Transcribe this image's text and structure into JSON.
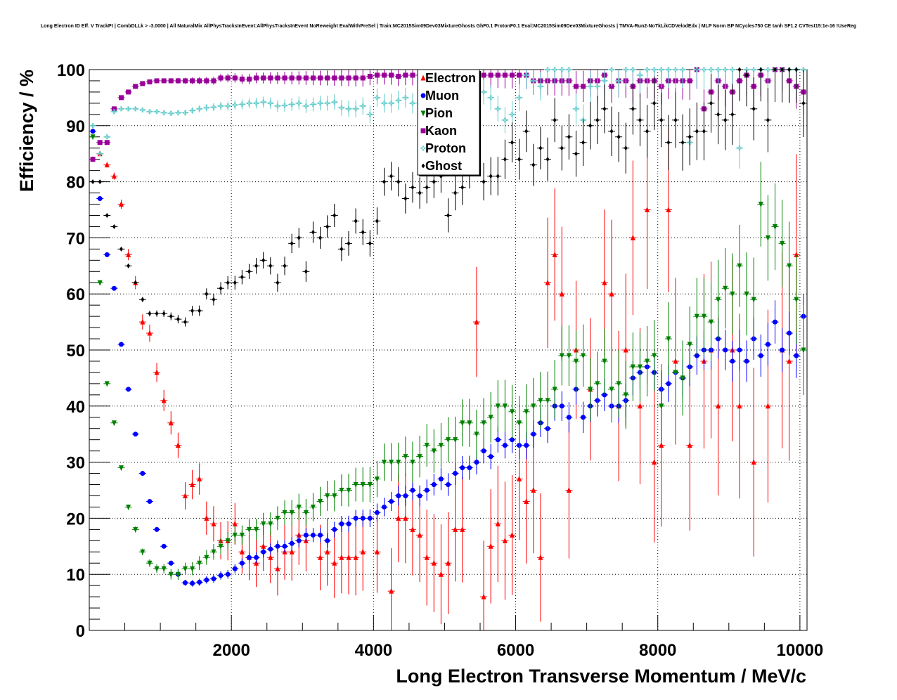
{
  "title": "Long Electron ID Eff. V TrackPt | CombDLLk > -3.0000 | All NaturalMix AllPhysTracksInEvent:AllPhysTracksInEvent NoReweight EvalWithPreSel | Train:MC2015Sim09Dev03MixtureGhosts GhF0.1 ProtonF0.1 Eval:MC2015Sim09Dev03MixtureGhosts | TMVA-Run2-NoTkLikCDVelodEdx | MLP Norm BP NCycles750 CE tanh SF1.2 CVTest15:1e-16 !UseReg",
  "chart_data": {
    "type": "scatter",
    "title": "Long Electron ID Eff. V TrackPt | CombDLLk > -3.0000 | All NaturalMix AllPhysTracksInEvent:AllPhysTracksInEvent NoReweight EvalWithPreSel | Train:MC2015Sim09Dev03MixtureGhosts GhF0.1 ProtonF0.1 Eval:MC2015Sim09Dev03MixtureGhosts | TMVA-Run2-NoTkLikCDVelodEdx | MLP Norm BP NCycles750 CE tanh SF1.2 CVTest15:1e-16 !UseReg",
    "xlabel": "Long Electron Transverse Momentum / MeV/c",
    "ylabel": "Efficiency / %",
    "xlim": [
      0,
      10100
    ],
    "ylim": [
      0,
      100
    ],
    "xticks": [
      2000,
      4000,
      6000,
      8000,
      10000
    ],
    "yticks": [
      0,
      10,
      20,
      30,
      40,
      50,
      60,
      70,
      80,
      90,
      100
    ],
    "grid": true,
    "legend_position": "top-center",
    "series": [
      {
        "name": "Electron",
        "color": "#ff0000",
        "marker": "triangle-up",
        "x": [
          50,
          150,
          250,
          350,
          450,
          550,
          650,
          750,
          850,
          950,
          1050,
          1150,
          1250,
          1350,
          1450,
          1550,
          1650,
          1750,
          1850,
          1950,
          2050,
          2150,
          2250,
          2350,
          2450,
          2550,
          2650,
          2750,
          2850,
          2950,
          3050,
          3250,
          3350,
          3450,
          3550,
          3650,
          3750,
          3850,
          4050,
          4250,
          4350,
          4450,
          4550,
          4650,
          4750,
          4850,
          4950,
          5050,
          5150,
          5250,
          5450,
          5550,
          5650,
          5750,
          5850,
          5950,
          6050,
          6150,
          6250,
          6350,
          6450,
          6550,
          6650,
          6750,
          6850,
          7050,
          7250,
          7350,
          7450,
          7550,
          7650,
          7750,
          7850,
          7950,
          8050,
          8150,
          8250,
          8450,
          8650,
          8750,
          8850,
          9050,
          9150,
          9350,
          9550,
          9750,
          9850,
          9950
        ],
        "y": [
          84,
          85,
          83,
          81,
          76,
          67,
          62,
          55,
          53,
          46,
          41,
          37,
          33,
          24,
          26,
          27,
          20,
          19,
          16,
          16,
          19,
          14,
          13,
          12,
          15,
          13,
          11,
          14,
          14,
          17,
          16,
          13,
          14,
          12,
          13,
          13,
          13,
          14,
          14,
          7,
          20,
          20,
          18,
          17,
          13,
          12,
          10,
          12,
          18,
          18,
          55,
          6,
          15,
          19,
          16,
          17,
          27,
          23,
          25,
          13,
          62,
          67,
          60,
          25,
          50,
          43,
          62,
          60,
          40,
          50,
          70,
          40,
          75,
          30,
          33,
          75,
          48,
          33,
          48,
          50,
          40,
          50,
          40,
          30,
          40,
          50,
          48,
          67
        ]
      },
      {
        "name": "Muon",
        "color": "#0000ff",
        "marker": "circle",
        "x": [
          50,
          150,
          250,
          350,
          450,
          550,
          650,
          750,
          850,
          950,
          1050,
          1150,
          1250,
          1350,
          1450,
          1550,
          1650,
          1750,
          1850,
          1950,
          2050,
          2150,
          2250,
          2350,
          2450,
          2550,
          2650,
          2750,
          2850,
          2950,
          3050,
          3150,
          3250,
          3350,
          3450,
          3550,
          3650,
          3750,
          3850,
          3950,
          4050,
          4150,
          4250,
          4350,
          4450,
          4550,
          4650,
          4750,
          4850,
          4950,
          5050,
          5150,
          5250,
          5350,
          5450,
          5550,
          5650,
          5750,
          5850,
          5950,
          6050,
          6150,
          6250,
          6350,
          6450,
          6550,
          6650,
          6750,
          6850,
          6950,
          7050,
          7150,
          7250,
          7350,
          7450,
          7550,
          7650,
          7750,
          7850,
          7950,
          8050,
          8150,
          8250,
          8350,
          8450,
          8550,
          8650,
          8750,
          8850,
          8950,
          9050,
          9150,
          9250,
          9350,
          9450,
          9550,
          9650,
          9750,
          9850,
          9950,
          10050
        ],
        "y": [
          89,
          77,
          67,
          61,
          51,
          43,
          35,
          28,
          23,
          18,
          15,
          12,
          10,
          8.5,
          8.4,
          8.6,
          9,
          9.2,
          9.8,
          10,
          11,
          12,
          13,
          13,
          14,
          14.5,
          15,
          15,
          15.5,
          16,
          17,
          17,
          17,
          16,
          18,
          19,
          19,
          20,
          20,
          20,
          21,
          22,
          23,
          24,
          24,
          25,
          24,
          25,
          26,
          27,
          26,
          28,
          29,
          29,
          30,
          32,
          31,
          34,
          33,
          34,
          33,
          33,
          35,
          37,
          36,
          40,
          40,
          38,
          43,
          38,
          40,
          41,
          42,
          40,
          40,
          41,
          45,
          46,
          47,
          46,
          43,
          44,
          46,
          45,
          47,
          49,
          50,
          50,
          52,
          50,
          48,
          50,
          48,
          52,
          49,
          51,
          55,
          50,
          53,
          49,
          56
        ]
      },
      {
        "name": "Pion",
        "color": "#008000",
        "marker": "triangle-down",
        "x": [
          50,
          150,
          250,
          350,
          450,
          550,
          650,
          750,
          850,
          950,
          1050,
          1150,
          1250,
          1350,
          1450,
          1550,
          1650,
          1750,
          1850,
          1950,
          2050,
          2150,
          2250,
          2350,
          2450,
          2550,
          2650,
          2750,
          2850,
          2950,
          3050,
          3150,
          3250,
          3350,
          3450,
          3550,
          3650,
          3750,
          3850,
          3950,
          4050,
          4150,
          4250,
          4350,
          4450,
          4550,
          4650,
          4750,
          4850,
          4950,
          5050,
          5150,
          5250,
          5350,
          5450,
          5550,
          5650,
          5750,
          5850,
          5950,
          6050,
          6150,
          6250,
          6350,
          6450,
          6550,
          6650,
          6750,
          6850,
          6950,
          7050,
          7150,
          7250,
          7350,
          7450,
          7550,
          7650,
          7750,
          7850,
          7950,
          8050,
          8150,
          8250,
          8350,
          8450,
          8550,
          8650,
          8750,
          8850,
          8950,
          9050,
          9150,
          9250,
          9350,
          9450,
          9550,
          9650,
          9750,
          9850,
          9950,
          10050
        ],
        "y": [
          88,
          62,
          44,
          37,
          29,
          22,
          18,
          14,
          12,
          11,
          11,
          10,
          10,
          11,
          11,
          12,
          13,
          14,
          15,
          16,
          17,
          17,
          18,
          18,
          19,
          19,
          20,
          21,
          21,
          22,
          21,
          22,
          23,
          24,
          24,
          25,
          25,
          26,
          26,
          26,
          27,
          30,
          30,
          30,
          31,
          30,
          31,
          33,
          32,
          33,
          34,
          34,
          37,
          37,
          35,
          37,
          38,
          40,
          40,
          39,
          37,
          39,
          40,
          41,
          41,
          43,
          49,
          49,
          48,
          49,
          43,
          44,
          48,
          43,
          44,
          42,
          47,
          47,
          48,
          49,
          40,
          52,
          46,
          45,
          51,
          56,
          56,
          55,
          59,
          61,
          60,
          65,
          60,
          59,
          76,
          70,
          72,
          69,
          65,
          59,
          50
        ]
      },
      {
        "name": "Kaon",
        "color": "#990099",
        "marker": "square",
        "x": [
          50,
          150,
          250,
          350,
          450,
          550,
          650,
          750,
          850,
          950,
          1050,
          1150,
          1250,
          1350,
          1450,
          1550,
          1650,
          1750,
          1850,
          1950,
          2050,
          2150,
          2250,
          2350,
          2450,
          2550,
          2650,
          2750,
          2850,
          2950,
          3050,
          3150,
          3250,
          3350,
          3450,
          3550,
          3650,
          3750,
          3850,
          3950,
          4050,
          4150,
          4250,
          4350,
          4450,
          4550,
          4650,
          4750,
          4850,
          4950,
          5050,
          5150,
          5250,
          5350,
          5450,
          5550,
          5650,
          5750,
          5850,
          5950,
          6050,
          6150,
          6250,
          6350,
          6450,
          6550,
          6650,
          6750,
          6850,
          6950,
          7050,
          7150,
          7250,
          7350,
          7450,
          7550,
          7650,
          7750,
          7850,
          7950,
          8050,
          8150,
          8250,
          8350,
          8450,
          8550,
          8650,
          8750,
          8850,
          8950,
          9050,
          9150,
          9250,
          9350,
          9450,
          9550,
          9650,
          9750,
          9850,
          9950,
          10050
        ],
        "y": [
          84,
          87,
          87,
          93,
          95,
          96,
          97,
          97.5,
          97.8,
          98,
          98,
          98,
          98,
          98,
          98,
          98,
          98,
          98,
          98.5,
          98.5,
          98.5,
          98.3,
          98.3,
          98.5,
          98.5,
          98.5,
          98.5,
          98.5,
          98.5,
          98.5,
          98.5,
          98.5,
          98.5,
          98.5,
          98.5,
          98.5,
          98.5,
          98.5,
          98.5,
          98.8,
          99,
          99,
          99,
          98.8,
          99,
          99,
          99,
          99,
          99,
          99,
          99,
          99,
          99,
          99,
          99,
          99,
          99,
          99,
          99,
          99,
          99,
          99,
          98,
          98,
          98,
          98,
          98,
          98,
          97,
          97,
          98,
          98,
          99,
          97,
          98,
          98,
          97,
          98,
          98,
          98,
          97,
          98,
          98,
          98,
          98,
          100,
          93,
          96,
          98,
          97,
          96,
          98,
          99,
          97,
          99,
          98,
          100,
          100,
          98,
          97,
          96
        ]
      },
      {
        "name": "Proton",
        "color": "#66cccc",
        "marker": "cross",
        "x": [
          50,
          150,
          250,
          350,
          450,
          550,
          650,
          750,
          850,
          950,
          1050,
          1150,
          1250,
          1350,
          1450,
          1550,
          1650,
          1750,
          1850,
          1950,
          2050,
          2150,
          2250,
          2350,
          2450,
          2550,
          2650,
          2750,
          2850,
          2950,
          3050,
          3150,
          3250,
          3350,
          3450,
          3550,
          3650,
          3750,
          3850,
          3950,
          4050,
          4150,
          4250,
          4350,
          4450,
          4550,
          4650,
          4750,
          4850,
          4950,
          5050,
          5150,
          5250,
          5350,
          5450,
          5550,
          5650,
          5750,
          5850,
          5950,
          6050,
          6150,
          6250,
          6350,
          6450,
          6550,
          6650,
          6750,
          6850,
          6950,
          7050,
          7150,
          7250,
          7350,
          7450,
          7550,
          7650,
          7750,
          7850,
          7950,
          8050,
          8150,
          8250,
          8350,
          8450,
          8550,
          8650,
          8750,
          8850,
          8950,
          9050,
          9150,
          9250,
          9350,
          9450,
          9550,
          9650,
          9750,
          9850,
          9950,
          10050
        ],
        "y": [
          90,
          85,
          88,
          92.5,
          93,
          93,
          93,
          92.8,
          92.5,
          92.5,
          92.3,
          92.2,
          92.3,
          92.3,
          92.7,
          93,
          93.2,
          93.3,
          93.5,
          93.5,
          93.7,
          93.8,
          94,
          94,
          94.2,
          94,
          93.5,
          93.6,
          93.8,
          94,
          93.5,
          93.8,
          94,
          94,
          94.2,
          93.2,
          93,
          93,
          93.5,
          92,
          95,
          94,
          94,
          94.5,
          95,
          94,
          94,
          94,
          96,
          96,
          96,
          97,
          97,
          96,
          95,
          96,
          95,
          93,
          91,
          92,
          95,
          99,
          98,
          97,
          100,
          100,
          100,
          100,
          93,
          91,
          97,
          97,
          98,
          100,
          98,
          100,
          100,
          99,
          100,
          100,
          100,
          100,
          100,
          100,
          87,
          100,
          100,
          100,
          100,
          100,
          100,
          86,
          100,
          100,
          100,
          100,
          100,
          100,
          100,
          100,
          100
        ]
      },
      {
        "name": "Ghost",
        "color": "#000000",
        "marker": "diamond",
        "x": [
          50,
          150,
          250,
          350,
          450,
          550,
          650,
          750,
          850,
          950,
          1050,
          1150,
          1250,
          1350,
          1450,
          1550,
          1650,
          1750,
          1850,
          1950,
          2050,
          2150,
          2250,
          2350,
          2450,
          2550,
          2650,
          2750,
          2850,
          2950,
          3050,
          3150,
          3250,
          3350,
          3450,
          3550,
          3650,
          3750,
          3850,
          3950,
          4050,
          4150,
          4250,
          4350,
          4450,
          4550,
          4650,
          4750,
          4850,
          4950,
          5050,
          5150,
          5250,
          5350,
          5450,
          5550,
          5650,
          5750,
          5850,
          5950,
          6050,
          6150,
          6250,
          6350,
          6450,
          6550,
          6650,
          6750,
          6850,
          6950,
          7050,
          7150,
          7250,
          7350,
          7450,
          7550,
          7650,
          7750,
          7850,
          7950,
          8050,
          8150,
          8250,
          8350,
          8450,
          8550,
          8650,
          8750,
          8850,
          8950,
          9050,
          9150,
          9250,
          9350,
          9450,
          9550,
          9650,
          9750,
          9850,
          9950,
          10050
        ],
        "y": [
          80,
          80,
          74,
          72,
          68,
          65,
          62,
          59,
          56.5,
          56.5,
          56.5,
          56,
          55.5,
          55,
          57,
          57,
          60,
          59,
          61,
          62,
          62,
          63,
          64,
          65,
          66,
          65,
          62,
          65,
          69,
          70,
          64,
          71,
          70,
          72,
          74,
          68,
          69,
          73,
          71,
          69,
          73,
          80,
          81,
          80,
          77,
          79,
          78,
          79,
          80,
          81,
          74,
          78,
          79,
          82,
          87,
          80,
          81,
          81,
          84,
          87,
          84,
          89,
          83,
          86,
          84,
          91,
          86,
          88,
          85,
          87,
          90,
          91,
          93,
          89,
          88,
          86,
          93,
          91,
          89,
          94,
          91,
          87,
          91,
          87,
          88,
          89,
          89,
          94,
          92,
          91,
          92,
          100,
          99,
          93,
          100,
          91,
          100,
          100,
          100,
          100,
          94
        ]
      }
    ]
  }
}
